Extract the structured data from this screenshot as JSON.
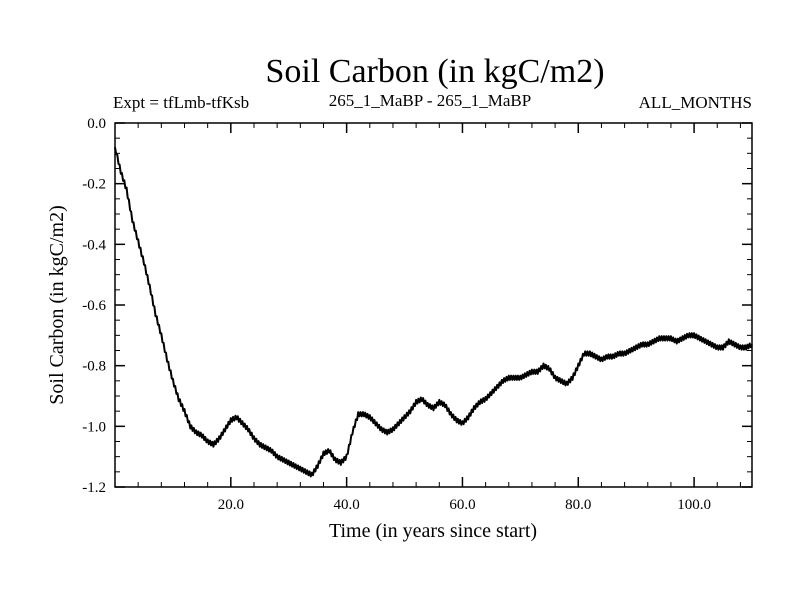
{
  "chart_data": {
    "type": "line",
    "title": "Soil Carbon (in kgC/m2)",
    "subtitle_left": "Expt = tfLmb-tfKsb",
    "subtitle_center": "265_1_MaBP - 265_1_MaBP",
    "subtitle_right": "ALL_MONTHS",
    "xlabel": "Time (in years since start)",
    "ylabel": "Soil Carbon (in kgC/m2)",
    "xlim": [
      0,
      110
    ],
    "ylim": [
      -1.2,
      0.0
    ],
    "x_ticks": [
      20,
      40,
      60,
      80,
      100
    ],
    "x_tick_labels": [
      "20.0",
      "40.0",
      "60.0",
      "80.0",
      "100.0"
    ],
    "y_ticks": [
      0.0,
      -0.2,
      -0.4,
      -0.6,
      -0.8,
      -1.0,
      -1.2
    ],
    "y_tick_labels": [
      "0.0",
      "-0.2",
      "-0.4",
      "-0.6",
      "-0.8",
      "-1.0",
      "-1.2"
    ],
    "series": [
      {
        "name": "Soil Carbon",
        "x": [
          0,
          1,
          2,
          3,
          4,
          5,
          6,
          7,
          8,
          9,
          10,
          11,
          12,
          13,
          14,
          15,
          16,
          17,
          18,
          19,
          20,
          21,
          22,
          23,
          24,
          25,
          26,
          27,
          28,
          29,
          30,
          31,
          32,
          33,
          34,
          35,
          36,
          37,
          38,
          39,
          40,
          41,
          42,
          43,
          44,
          45,
          46,
          47,
          48,
          49,
          50,
          51,
          52,
          53,
          54,
          55,
          56,
          57,
          58,
          59,
          60,
          61,
          62,
          63,
          64,
          65,
          66,
          67,
          68,
          69,
          70,
          71,
          72,
          73,
          74,
          75,
          76,
          77,
          78,
          79,
          80,
          81,
          82,
          83,
          84,
          85,
          86,
          87,
          88,
          89,
          90,
          91,
          92,
          93,
          94,
          95,
          96,
          97,
          98,
          99,
          100,
          101,
          102,
          103,
          104,
          105,
          106,
          107,
          108,
          109,
          110
        ],
        "y": [
          -0.08,
          -0.16,
          -0.22,
          -0.32,
          -0.39,
          -0.46,
          -0.54,
          -0.63,
          -0.7,
          -0.78,
          -0.85,
          -0.91,
          -0.95,
          -1.0,
          -1.02,
          -1.03,
          -1.05,
          -1.06,
          -1.04,
          -1.01,
          -0.98,
          -0.97,
          -0.99,
          -1.01,
          -1.04,
          -1.06,
          -1.07,
          -1.08,
          -1.1,
          -1.11,
          -1.12,
          -1.13,
          -1.14,
          -1.15,
          -1.16,
          -1.13,
          -1.09,
          -1.08,
          -1.11,
          -1.12,
          -1.1,
          -1.02,
          -0.96,
          -0.96,
          -0.97,
          -0.99,
          -1.01,
          -1.02,
          -1.01,
          -0.99,
          -0.97,
          -0.95,
          -0.92,
          -0.91,
          -0.93,
          -0.94,
          -0.92,
          -0.93,
          -0.96,
          -0.98,
          -0.99,
          -0.97,
          -0.94,
          -0.92,
          -0.91,
          -0.89,
          -0.87,
          -0.85,
          -0.84,
          -0.84,
          -0.84,
          -0.83,
          -0.82,
          -0.82,
          -0.8,
          -0.81,
          -0.84,
          -0.85,
          -0.86,
          -0.84,
          -0.8,
          -0.76,
          -0.76,
          -0.77,
          -0.78,
          -0.77,
          -0.77,
          -0.76,
          -0.76,
          -0.75,
          -0.74,
          -0.73,
          -0.73,
          -0.72,
          -0.71,
          -0.71,
          -0.71,
          -0.72,
          -0.71,
          -0.7,
          -0.7,
          -0.71,
          -0.72,
          -0.73,
          -0.74,
          -0.74,
          -0.72,
          -0.73,
          -0.74,
          -0.74,
          -0.73
        ]
      }
    ]
  }
}
